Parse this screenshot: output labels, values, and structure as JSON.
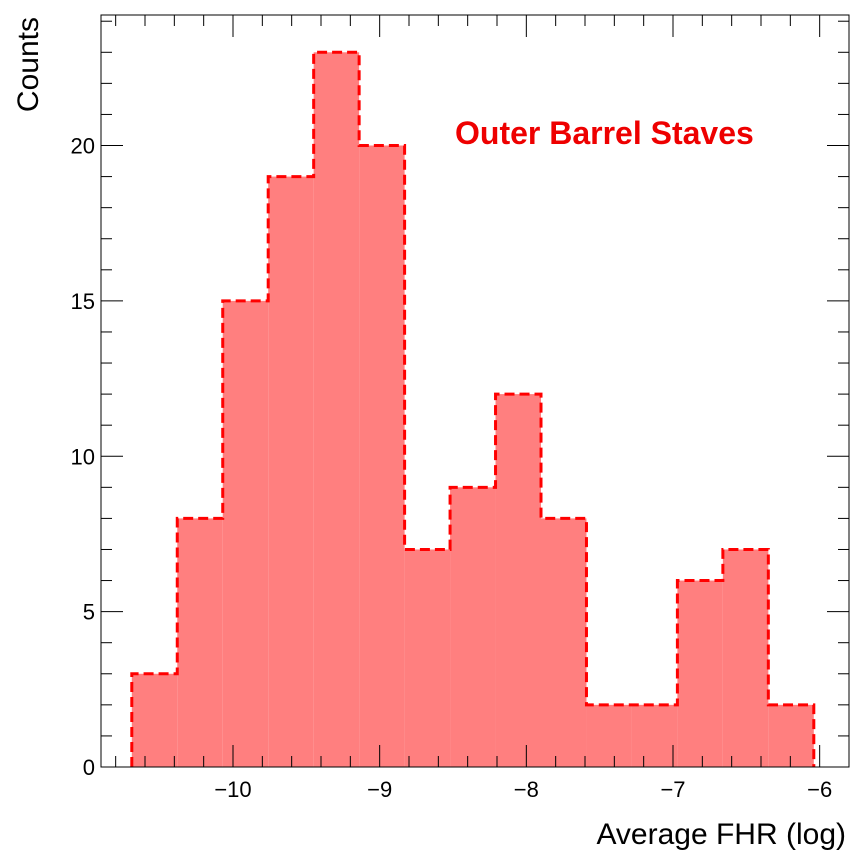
{
  "chart_data": {
    "type": "bar",
    "title": "",
    "xlabel": "Average FHR (log)",
    "ylabel": "Counts",
    "annotation": "Outer Barrel Staves",
    "xlim": [
      -10.9,
      -5.8
    ],
    "ylim": [
      0,
      24.2
    ],
    "bin_edges": [
      -10.69,
      -10.38,
      -10.07,
      -9.76,
      -9.45,
      -9.14,
      -8.83,
      -8.52,
      -8.21,
      -7.9,
      -7.59,
      -7.28,
      -6.97,
      -6.66,
      -6.35,
      -6.04
    ],
    "values": [
      3,
      8,
      15,
      19,
      23,
      20,
      7,
      9,
      12,
      8,
      2,
      2,
      6,
      7,
      2
    ],
    "x_ticks": [
      {
        "value": -10,
        "label": "−10"
      },
      {
        "value": -9,
        "label": "−9"
      },
      {
        "value": -8,
        "label": "−8"
      },
      {
        "value": -7,
        "label": "−7"
      },
      {
        "value": -6,
        "label": "−6"
      }
    ],
    "y_ticks": [
      {
        "value": 0,
        "label": "0"
      },
      {
        "value": 5,
        "label": "5"
      },
      {
        "value": 10,
        "label": "10"
      },
      {
        "value": 15,
        "label": "15"
      },
      {
        "value": 20,
        "label": "20"
      }
    ],
    "fill_color": "#ff7f7f",
    "line_color": "#ff0000",
    "annotation_color": "#ee0000",
    "line_style": "dashed",
    "grid": false
  }
}
